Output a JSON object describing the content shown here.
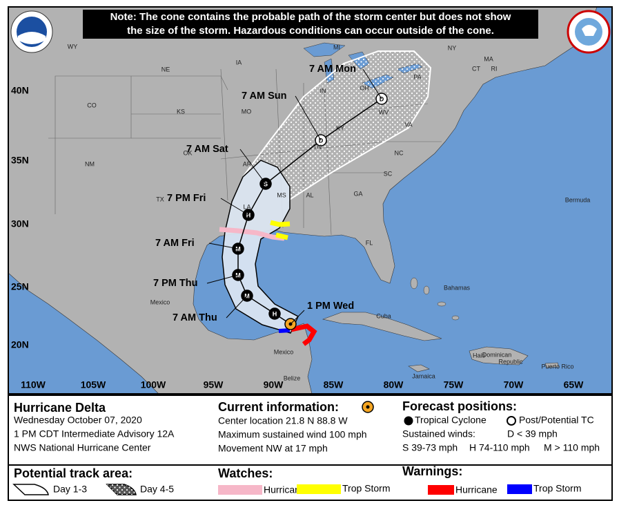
{
  "note": [
    "Note: The cone contains the probable path of the storm center but does not show",
    "the size of the storm. Hazardous conditions can occur outside of the cone."
  ],
  "map": {
    "latitude_labels": [
      "40N",
      "35N",
      "30N",
      "25N",
      "20N"
    ],
    "longitude_labels": [
      "110W",
      "105W",
      "100W",
      "95W",
      "90W",
      "85W",
      "80W",
      "75W",
      "70W",
      "65W"
    ],
    "place_labels": [
      "WY",
      "NE",
      "IA",
      "MI",
      "NY",
      "MA",
      "CT",
      "RI",
      "PA",
      "OH",
      "IN",
      "CO",
      "KS",
      "MO",
      "KY",
      "WV",
      "VA",
      "NM",
      "OK",
      "AR",
      "TN",
      "NC",
      "SC",
      "TX",
      "LA",
      "MS",
      "AL",
      "GA",
      "FL",
      "Bermuda",
      "Bahamas",
      "Cuba",
      "Mexico",
      "Mexico",
      "Jamaica",
      "Haiti",
      "Dominican",
      "Republic",
      "Puerto Rico",
      "Belize"
    ],
    "forecast_labels": [
      "1 PM Wed",
      "7 AM Thu",
      "7 PM Thu",
      "7 AM Fri",
      "7 PM Fri",
      "7 AM Sat",
      "7 AM Sun",
      "7 AM Mon"
    ],
    "forecast_symbols": [
      "H",
      "M",
      "M",
      "M",
      "H",
      "S",
      "D",
      "D"
    ]
  },
  "legend": {
    "storm_name": "Hurricane Delta",
    "date": "Wednesday October 07, 2020",
    "advisory": "1 PM CDT Intermediate Advisory 12A",
    "source": "NWS National Hurricane Center",
    "current_title": "Current information:",
    "current_lines": [
      "Center location 21.8 N 88.8 W",
      "Maximum sustained wind 100 mph",
      "Movement NW at 17 mph"
    ],
    "forecast_title": "Forecast positions:",
    "tropical_cyclone": "Tropical Cyclone",
    "post_tc": "Post/Potential TC",
    "sustained_winds": "Sustained winds:",
    "d_wind": "D < 39 mph",
    "s_wind": "S 39-73 mph",
    "h_wind": "H 74-110 mph",
    "m_wind": "M > 110 mph",
    "track_title": "Potential track area:",
    "day13": "Day 1-3",
    "day45": "Day 4-5",
    "watches_title": "Watches:",
    "hurricane_watch": "Hurricane",
    "ts_watch": "Trop Storm",
    "warnings_title": "Warnings:",
    "hurricane_warning": "Hurricane",
    "ts_warning": "Trop Storm"
  }
}
